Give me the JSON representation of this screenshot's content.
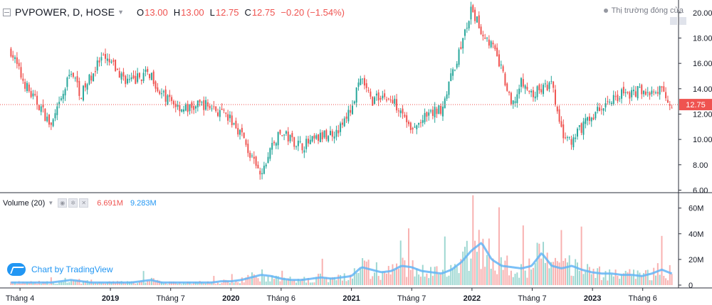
{
  "header": {
    "symbol": "PVPOWER, D, HOSE",
    "open_label": "O",
    "open": "13.00",
    "high_label": "H",
    "high": "13.00",
    "low_label": "L",
    "low": "12.75",
    "close_label": "C",
    "close": "12.75",
    "change": "−0.20 (−1.54%)"
  },
  "status_text": "Thị trường đóng cửa",
  "volume_header": {
    "title": "Volume (20)",
    "value1": "6.691M",
    "value2": "9.283M"
  },
  "brand": "Chart by TradingView",
  "last_price_label": "12.75",
  "colors": {
    "up": "#26a69a",
    "down": "#ef5350",
    "volume_ma": "#64b5f6",
    "price_line": "#ef5350",
    "brand": "#2196f3"
  },
  "chart_data": [
    {
      "type": "candlestick",
      "title": "PVPOWER, D, HOSE",
      "ylim": [
        5.8,
        21.0
      ],
      "y_ticks": [
        "6.00",
        "8.00",
        "10.00",
        "12.00",
        "14.00",
        "16.00",
        "18.00",
        "20.00"
      ],
      "y_tick_values": [
        6,
        8,
        10,
        12,
        14,
        16,
        18,
        20
      ],
      "x_tick_labels": [
        "Tháng 4",
        "2019",
        "Tháng 7",
        "2020",
        "Tháng 6",
        "2021",
        "Tháng 7",
        "2022",
        "Tháng 7",
        "2023",
        "Tháng 6"
      ],
      "last_price": 12.75,
      "approx_close_path": {
        "dates": [
          "2018-03",
          "2018-04",
          "2018-05",
          "2018-06",
          "2018-07",
          "2018-08",
          "2018-09",
          "2018-10",
          "2018-11",
          "2018-12",
          "2019-01",
          "2019-02",
          "2019-03",
          "2019-04",
          "2019-05",
          "2019-06",
          "2019-07",
          "2019-08",
          "2019-09",
          "2019-10",
          "2019-11",
          "2019-12",
          "2020-01",
          "2020-02",
          "2020-03",
          "2020-04",
          "2020-05",
          "2020-06",
          "2020-07",
          "2020-08",
          "2020-09",
          "2020-10",
          "2020-11",
          "2020-12",
          "2021-01",
          "2021-02",
          "2021-03",
          "2021-04",
          "2021-05",
          "2021-06",
          "2021-07",
          "2021-08",
          "2021-09",
          "2021-10",
          "2021-11",
          "2021-12",
          "2022-01",
          "2022-02",
          "2022-03",
          "2022-04",
          "2022-05",
          "2022-06",
          "2022-07",
          "2022-08",
          "2022-09",
          "2022-10",
          "2022-11",
          "2022-12",
          "2023-01",
          "2023-02",
          "2023-03",
          "2023-04",
          "2023-05",
          "2023-06",
          "2023-07",
          "2023-08",
          "2023-09"
        ],
        "close": [
          17.0,
          15.0,
          13.5,
          12.5,
          11.0,
          13.0,
          15.5,
          13.5,
          15.0,
          16.3,
          16.0,
          15.0,
          14.5,
          15.0,
          15.2,
          13.5,
          13.0,
          12.5,
          12.4,
          12.8,
          12.6,
          12.0,
          11.5,
          10.5,
          8.5,
          7.0,
          9.5,
          10.5,
          10.0,
          9.5,
          9.8,
          10.2,
          10.5,
          11.0,
          12.5,
          14.8,
          13.0,
          13.5,
          13.0,
          12.5,
          10.5,
          11.5,
          12.0,
          12.5,
          15.0,
          17.5,
          20.2,
          18.5,
          17.5,
          15.5,
          12.5,
          14.5,
          13.5,
          14.0,
          14.3,
          10.5,
          9.6,
          11.0,
          11.8,
          12.5,
          13.2,
          13.6,
          13.6,
          14.0,
          13.5,
          13.9,
          12.75
        ]
      }
    },
    {
      "type": "bar",
      "title": "Volume (20)",
      "ylim": [
        0,
        72
      ],
      "y_ticks": [
        "0",
        "20M",
        "40M",
        "60M"
      ],
      "y_tick_values": [
        0,
        20,
        40,
        60
      ],
      "units": "M",
      "latest_volume": 6.691,
      "latest_ma20": 9.283,
      "approx_ma20_path": [
        2,
        2,
        2,
        2,
        2,
        3,
        4,
        3,
        2,
        2,
        2,
        2,
        2,
        3,
        4,
        2,
        2,
        2,
        2,
        2,
        2,
        3,
        3,
        4,
        6,
        8,
        7,
        5,
        4,
        4,
        5,
        6,
        5,
        6,
        7,
        14,
        12,
        10,
        11,
        15,
        14,
        11,
        10,
        9,
        12,
        18,
        27,
        33,
        20,
        15,
        14,
        13,
        15,
        25,
        15,
        13,
        15,
        12,
        10,
        9,
        9,
        8,
        8,
        7,
        9,
        12,
        9
      ]
    }
  ]
}
